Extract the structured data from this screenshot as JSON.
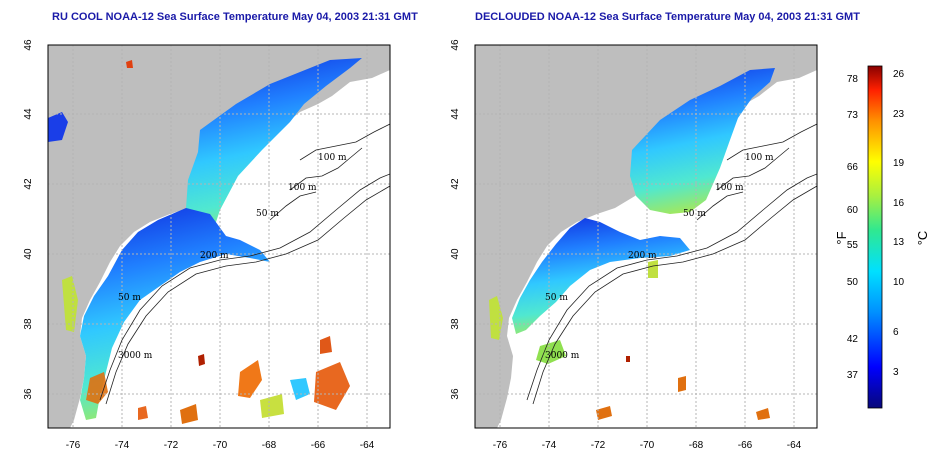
{
  "panels": [
    {
      "title": "RU COOL NOAA-12 Sea Surface Temperature May 04, 2003 21:31 GMT",
      "contour_labels": [
        "100 m",
        "100 m",
        "50 m",
        "200 m",
        "50 m",
        "3000 m"
      ]
    },
    {
      "title": "DECLOUDED NOAA-12 Sea Surface Temperature May 04, 2003 21:31 GMT",
      "contour_labels": [
        "100 m",
        "100 m",
        "50 m",
        "200 m",
        "50 m",
        "3000 m"
      ]
    }
  ],
  "axes": {
    "lon_ticks": [
      "-76",
      "-74",
      "-72",
      "-70",
      "-68",
      "-66",
      "-64"
    ],
    "lat_ticks": [
      "46",
      "44",
      "42",
      "40",
      "38",
      "36"
    ]
  },
  "colorbar": {
    "fahrenheit_ticks": [
      "78",
      "73",
      "66",
      "60",
      "55",
      "50",
      "42",
      "37"
    ],
    "celsius_ticks": [
      "26",
      "23",
      "19",
      "16",
      "13",
      "10",
      "6",
      "3"
    ],
    "fahrenheit_unit": "°F",
    "celsius_unit": "°C"
  },
  "colors": {
    "land": "#bebebe",
    "title": "#1a1aa8",
    "grid": "#b4b4b4"
  }
}
